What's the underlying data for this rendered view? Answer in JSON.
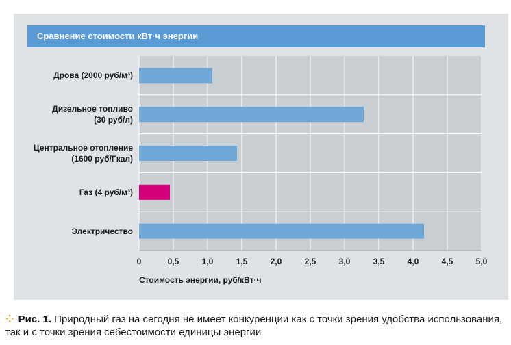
{
  "chart_data": {
    "type": "bar",
    "orientation": "horizontal",
    "title": "Сравнение стоимости кВт·ч энергии",
    "categories": [
      "Дрова (2000 руб/м³)",
      "Дизельное топливо (30 руб/л)",
      "Центральное отопление (1600 руб/Гкал)",
      "Газ (4 руб/м³)",
      "Электричество"
    ],
    "category_lines": [
      [
        "Дрова (2000 руб/м³)"
      ],
      [
        "Дизельное топливо",
        "(30 руб/л)"
      ],
      [
        "Центральное отопление",
        "(1600 руб/Гкал)"
      ],
      [
        "Газ (4 руб/м³)"
      ],
      [
        "Электричество"
      ]
    ],
    "values": [
      1.07,
      3.28,
      1.43,
      0.45,
      4.16
    ],
    "colors": [
      "#6fa8d6",
      "#6fa8d6",
      "#6fa8d6",
      "#d4007a",
      "#6fa8d6"
    ],
    "xlabel": "Стоимость энергии, руб/кВт·ч",
    "ylabel": "",
    "xlim": [
      0,
      5
    ],
    "xticks": [
      "0",
      "0,5",
      "1,0",
      "1,5",
      "2,0",
      "2,5",
      "3,0",
      "3,5",
      "4,0",
      "4,5",
      "5,0"
    ],
    "grid": true
  },
  "caption": {
    "prefix": "Рис. 1.",
    "text": "Природный газ на сегодня не имеет конкуренции как с точки зрения удобства использования, так и с точки зрения себестоимости единицы энергии"
  },
  "colors": {
    "panel": "#dfe3e6",
    "header": "#5b9bd5",
    "bar": "#6fa8d6",
    "highlight": "#d4007a",
    "bullet": "#e4a11b"
  }
}
